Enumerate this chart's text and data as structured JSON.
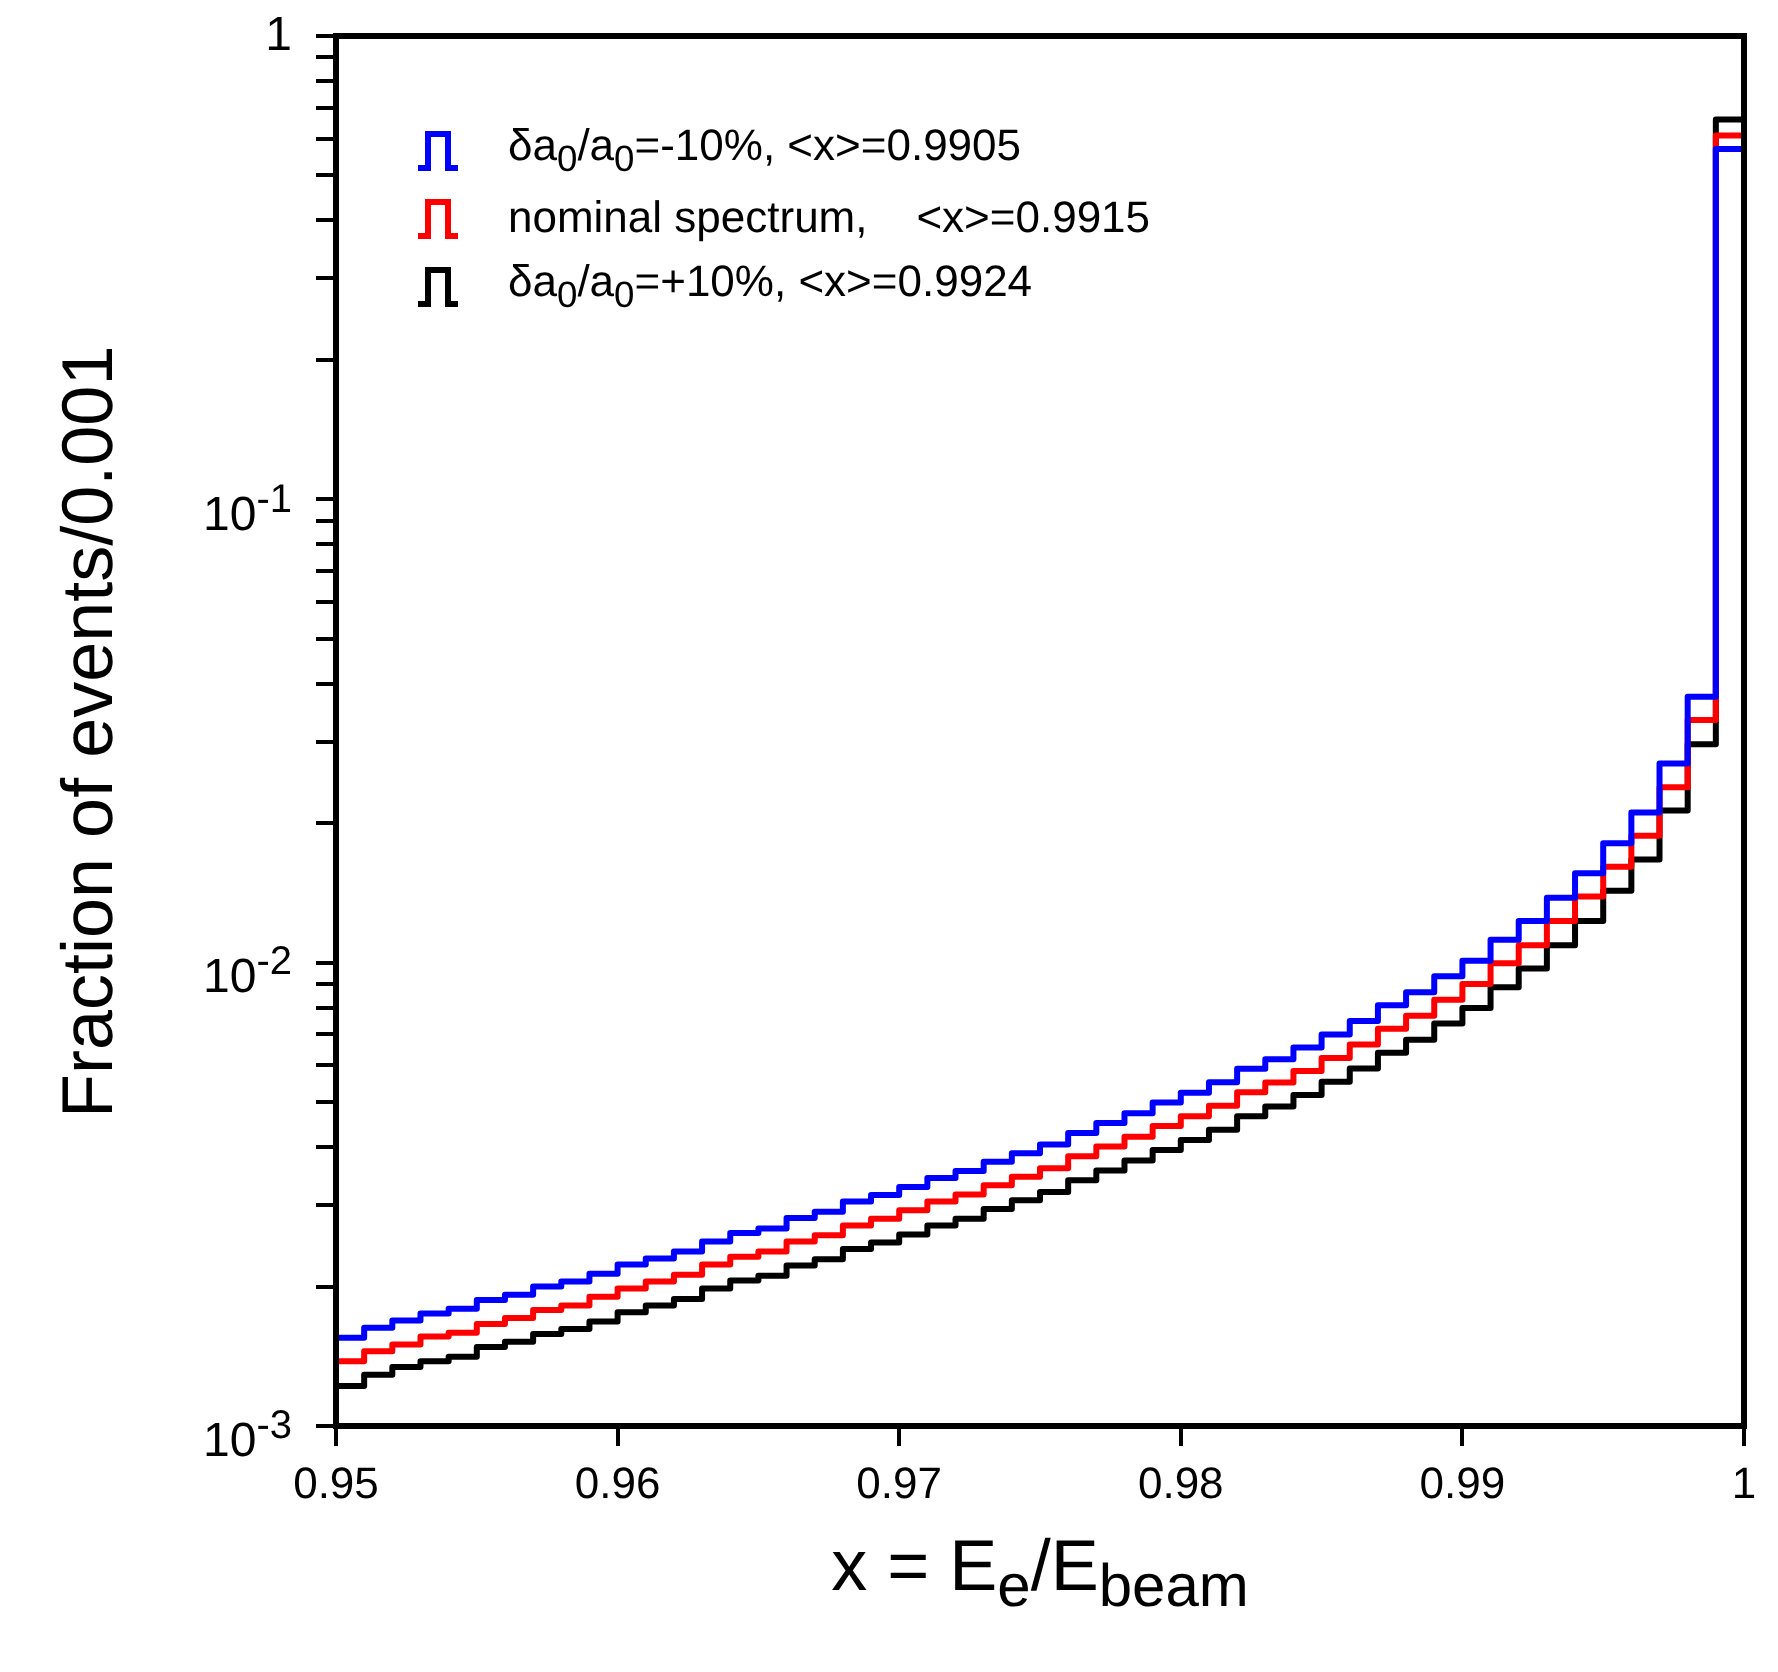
{
  "chart_data": {
    "type": "histogram",
    "xlabel": "x = E$_{e}$/E$_{beam}$",
    "ylabel": "Fraction of events/0.001",
    "bins": [
      0.95,
      0.951,
      0.952,
      0.953,
      0.954,
      0.955,
      0.956,
      0.957,
      0.958,
      0.959,
      0.96,
      0.961,
      0.962,
      0.963,
      0.964,
      0.965,
      0.966,
      0.967,
      0.968,
      0.969,
      0.97,
      0.971,
      0.972,
      0.973,
      0.974,
      0.975,
      0.976,
      0.977,
      0.978,
      0.979,
      0.98,
      0.981,
      0.982,
      0.983,
      0.984,
      0.985,
      0.986,
      0.987,
      0.988,
      0.989,
      0.99,
      0.991,
      0.992,
      0.993,
      0.994,
      0.995,
      0.996,
      0.997,
      0.998,
      0.999,
      1
    ],
    "series": [
      {
        "name": "δa$_{0}$/a$_{0}$=-10%, <x>=0.9905",
        "color": "#0000ff",
        "values": [
          0.00155,
          0.00163,
          0.00169,
          0.00175,
          0.00179,
          0.00187,
          0.00192,
          0.002,
          0.00205,
          0.00213,
          0.00223,
          0.0023,
          0.00238,
          0.0025,
          0.00261,
          0.00267,
          0.00281,
          0.0029,
          0.00305,
          0.00315,
          0.00328,
          0.00343,
          0.00355,
          0.00372,
          0.00388,
          0.00405,
          0.00429,
          0.00451,
          0.00473,
          0.00499,
          0.00524,
          0.00552,
          0.0059,
          0.00619,
          0.00656,
          0.007,
          0.00748,
          0.00809,
          0.00863,
          0.00935,
          0.0101,
          0.0112,
          0.0123,
          0.0138,
          0.0156,
          0.0181,
          0.0211,
          0.0269,
          0.0375,
          0.57
        ]
      },
      {
        "name": "nominal spectrum,    <x>=0.9915",
        "color": "#ff0000",
        "values": [
          0.00138,
          0.00145,
          0.0015,
          0.00156,
          0.00159,
          0.00166,
          0.00171,
          0.00178,
          0.00182,
          0.0019,
          0.00198,
          0.00205,
          0.00212,
          0.00223,
          0.00232,
          0.00238,
          0.0025,
          0.00258,
          0.00271,
          0.0028,
          0.00292,
          0.00305,
          0.00316,
          0.00331,
          0.00345,
          0.0036,
          0.00382,
          0.00401,
          0.00421,
          0.00444,
          0.00466,
          0.00491,
          0.00525,
          0.00551,
          0.00584,
          0.00623,
          0.00666,
          0.0072,
          0.00768,
          0.00832,
          0.00899,
          0.00997,
          0.0109,
          0.0123,
          0.0139,
          0.0161,
          0.0188,
          0.0239,
          0.0334,
          0.61
        ]
      },
      {
        "name": "δa$_{0}$/a$_{0}$=+10%, <x>=0.9924",
        "color": "#000000",
        "values": [
          0.00122,
          0.00129,
          0.00134,
          0.00138,
          0.00141,
          0.00148,
          0.00152,
          0.00158,
          0.00162,
          0.00168,
          0.00176,
          0.00182,
          0.00188,
          0.00198,
          0.00206,
          0.00211,
          0.00222,
          0.00229,
          0.00241,
          0.00249,
          0.00259,
          0.00271,
          0.0028,
          0.00294,
          0.00307,
          0.0032,
          0.00339,
          0.00356,
          0.00374,
          0.00394,
          0.00414,
          0.00436,
          0.00466,
          0.00489,
          0.00518,
          0.00553,
          0.00591,
          0.00639,
          0.00682,
          0.00739,
          0.00798,
          0.00885,
          0.00972,
          0.0109,
          0.0123,
          0.0143,
          0.0167,
          0.0213,
          0.0296,
          0.66
        ]
      }
    ],
    "xlim": [
      0.95,
      1
    ],
    "xticks": [
      0.95,
      0.96,
      0.97,
      0.98,
      0.99,
      1
    ],
    "ylim": [
      0.001,
      1
    ],
    "yticks": [
      {
        "value": 0.001,
        "label": "10$^{-3}$"
      },
      {
        "value": 0.002,
        "label": null
      },
      {
        "value": 0.003,
        "label": null
      },
      {
        "value": 0.004,
        "label": null
      },
      {
        "value": 0.005,
        "label": null
      },
      {
        "value": 0.006,
        "label": null
      },
      {
        "value": 0.007,
        "label": null
      },
      {
        "value": 0.008,
        "label": null
      },
      {
        "value": 0.009,
        "label": null
      },
      {
        "value": 0.01,
        "label": "10$^{-2}$"
      },
      {
        "value": 0.02,
        "label": null
      },
      {
        "value": 0.03,
        "label": null
      },
      {
        "value": 0.04,
        "label": null
      },
      {
        "value": 0.05,
        "label": null
      },
      {
        "value": 0.06,
        "label": null
      },
      {
        "value": 0.07,
        "label": null
      },
      {
        "value": 0.08,
        "label": null
      },
      {
        "value": 0.09,
        "label": null
      },
      {
        "value": 0.1,
        "label": "10$^{-1}$"
      },
      {
        "value": 0.2,
        "label": null
      },
      {
        "value": 0.3,
        "label": null
      },
      {
        "value": 0.4,
        "label": null
      },
      {
        "value": 0.5,
        "label": null
      },
      {
        "value": 0.6,
        "label": null
      },
      {
        "value": 0.7,
        "label": null
      },
      {
        "value": 0.8,
        "label": null
      },
      {
        "value": 0.9,
        "label": null
      },
      {
        "value": 1,
        "label": "1"
      }
    ],
    "log": true,
    "grid": false,
    "legend": "top left",
    "marker": "none",
    "line_style": "solid"
  }
}
